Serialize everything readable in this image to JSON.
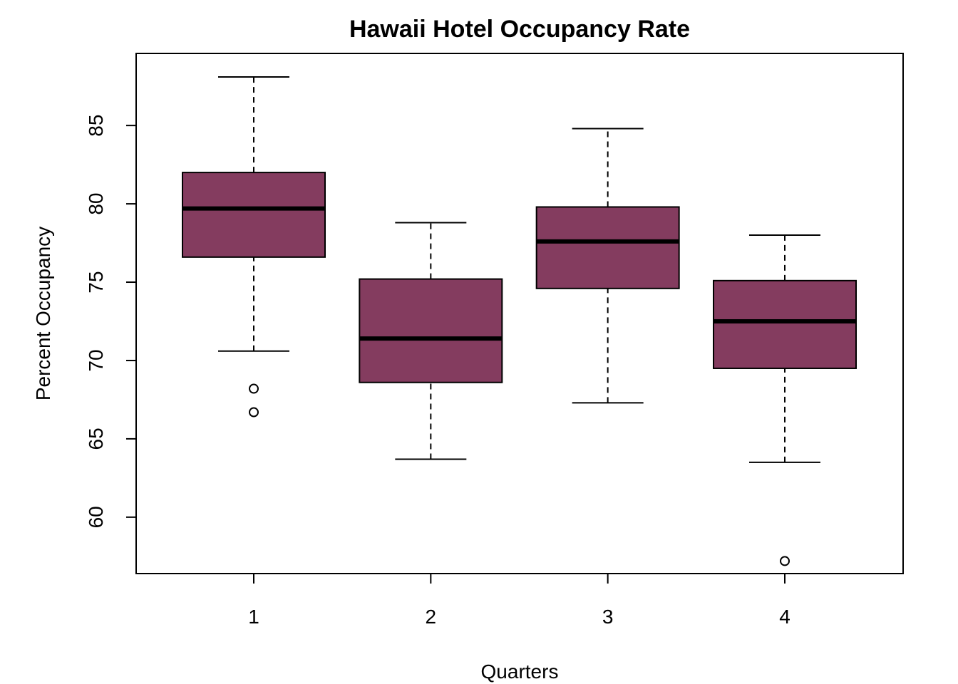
{
  "chart_data": {
    "type": "boxplot",
    "title": "Hawaii Hotel Occupancy Rate",
    "xlabel": "Quarters",
    "ylabel": "Percent Occupancy",
    "categories": [
      "1",
      "2",
      "3",
      "4"
    ],
    "yticks": [
      60,
      65,
      70,
      75,
      80,
      85
    ],
    "ylim": [
      56.4,
      89.6
    ],
    "grid": false,
    "box_color": "#843C5F",
    "boxes": [
      {
        "category": "1",
        "whisker_low": 70.6,
        "q1": 76.6,
        "median": 79.7,
        "q3": 82.0,
        "whisker_high": 88.1,
        "outliers": [
          68.2,
          66.7
        ]
      },
      {
        "category": "2",
        "whisker_low": 63.7,
        "q1": 68.6,
        "median": 71.4,
        "q3": 75.2,
        "whisker_high": 78.8,
        "outliers": []
      },
      {
        "category": "3",
        "whisker_low": 67.3,
        "q1": 74.6,
        "median": 77.6,
        "q3": 79.8,
        "whisker_high": 84.8,
        "outliers": []
      },
      {
        "category": "4",
        "whisker_low": 63.5,
        "q1": 69.5,
        "median": 72.5,
        "q3": 75.1,
        "whisker_high": 78.0,
        "outliers": [
          57.2
        ]
      }
    ]
  }
}
